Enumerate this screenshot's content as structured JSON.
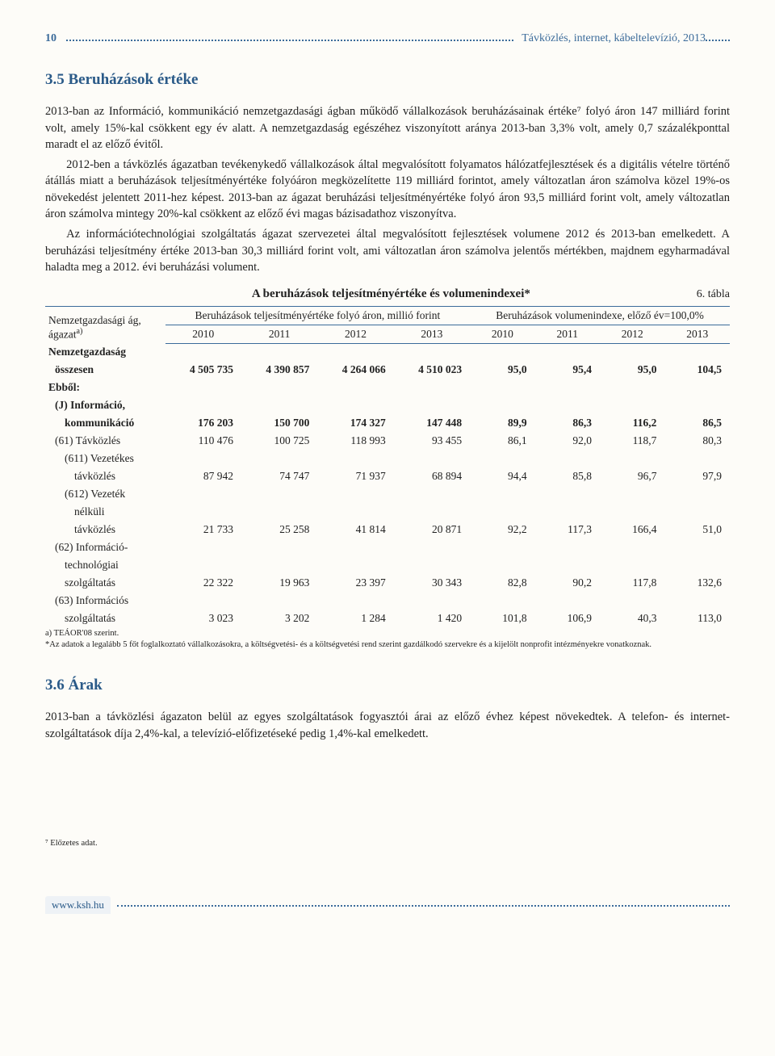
{
  "header": {
    "page_num": "10",
    "title": "Távközlés, internet, kábeltelevízió, 2013"
  },
  "section35": {
    "title": "3.5 Beruházások értéke",
    "p1": "2013-ban az Információ, kommunikáció nemzetgazdasági ágban működő vállalkozások beruházásainak értéke⁷ folyó áron 147 milliárd forint volt, amely 15%-kal csökkent egy év alatt. A nemzetgazdaság egészéhez viszonyított aránya 2013-ban 3,3% volt, amely 0,7 százalékponttal maradt el az előző évitől.",
    "p2": "2012-ben a távközlés ágazatban tevékenykedő vállalkozások által megvalósított folyamatos hálózatfejlesztések és a digitális vételre történő átállás miatt a beruházások teljesítményértéke folyóáron megközelítette 119 milliárd forintot, amely változatlan áron számolva közel 19%-os növekedést jelentett 2011-hez képest. 2013-ban az ágazat beruházási teljesítményértéke folyó áron 93,5 milliárd forint volt, amely változatlan áron számolva mintegy 20%-kal csökkent az előző évi magas bázisadathoz viszonyítva.",
    "p3": "Az információtechnológiai szolgáltatás ágazat szervezetei által megvalósított fejlesztések volumene 2012 és 2013-ban emelkedett. A beruházási teljesítmény értéke 2013-ban 30,3 milliárd forint volt, ami változatlan áron számolva jelentős mértékben, majdnem egyharmadával haladta meg a 2012. évi beruházási volument."
  },
  "table": {
    "number": "6. tábla",
    "title": "A beruházások teljesítményértéke és volumenindexei*",
    "rowhead_l1": "Nemzetgazdasági ág,",
    "rowhead_l2": "ágazat",
    "rowhead_sup": "a)",
    "group1": "Beruházások teljesítményértéke folyó áron, millió forint",
    "group2": "Beruházások volumenindexe, előző év=100,0%",
    "years": [
      "2010",
      "2011",
      "2012",
      "2013",
      "2010",
      "2011",
      "2012",
      "2013"
    ],
    "rows": [
      {
        "label": "Nemzetgazdaság",
        "bold": true,
        "ind": 0,
        "vals": [
          "",
          "",
          "",
          "",
          "",
          "",
          "",
          ""
        ]
      },
      {
        "label": "összesen",
        "bold": true,
        "ind": 1,
        "vals": [
          "4 505 735",
          "4 390 857",
          "4 264 066",
          "4 510 023",
          "95,0",
          "95,4",
          "95,0",
          "104,5"
        ]
      },
      {
        "label": "Ebből:",
        "bold": true,
        "ind": 0,
        "vals": [
          "",
          "",
          "",
          "",
          "",
          "",
          "",
          ""
        ]
      },
      {
        "label": "(J) Információ,",
        "bold": true,
        "ind": 1,
        "vals": [
          "",
          "",
          "",
          "",
          "",
          "",
          "",
          ""
        ]
      },
      {
        "label": "kommunikáció",
        "bold": true,
        "ind": 2,
        "vals": [
          "176 203",
          "150 700",
          "174 327",
          "147 448",
          "89,9",
          "86,3",
          "116,2",
          "86,5"
        ]
      },
      {
        "label": "(61) Távközlés",
        "bold": false,
        "ind": 1,
        "vals": [
          "110 476",
          "100 725",
          "118 993",
          "93 455",
          "86,1",
          "92,0",
          "118,7",
          "80,3"
        ]
      },
      {
        "label": "(611) Vezetékes",
        "bold": false,
        "ind": 2,
        "vals": [
          "",
          "",
          "",
          "",
          "",
          "",
          "",
          ""
        ]
      },
      {
        "label": "távközlés",
        "bold": false,
        "ind": 3,
        "vals": [
          "87 942",
          "74 747",
          "71 937",
          "68 894",
          "94,4",
          "85,8",
          "96,7",
          "97,9"
        ]
      },
      {
        "label": "(612) Vezeték",
        "bold": false,
        "ind": 2,
        "vals": [
          "",
          "",
          "",
          "",
          "",
          "",
          "",
          ""
        ]
      },
      {
        "label": "nélküli",
        "bold": false,
        "ind": 3,
        "vals": [
          "",
          "",
          "",
          "",
          "",
          "",
          "",
          ""
        ]
      },
      {
        "label": "távközlés",
        "bold": false,
        "ind": 3,
        "vals": [
          "21 733",
          "25 258",
          "41 814",
          "20 871",
          "92,2",
          "117,3",
          "166,4",
          "51,0"
        ]
      },
      {
        "label": "(62) Információ-",
        "bold": false,
        "ind": 1,
        "vals": [
          "",
          "",
          "",
          "",
          "",
          "",
          "",
          ""
        ]
      },
      {
        "label": "technológiai",
        "bold": false,
        "ind": 2,
        "vals": [
          "",
          "",
          "",
          "",
          "",
          "",
          "",
          ""
        ]
      },
      {
        "label": "szolgáltatás",
        "bold": false,
        "ind": 2,
        "vals": [
          "22 322",
          "19 963",
          "23 397",
          "30 343",
          "82,8",
          "90,2",
          "117,8",
          "132,6"
        ]
      },
      {
        "label": "(63) Információs",
        "bold": false,
        "ind": 1,
        "vals": [
          "",
          "",
          "",
          "",
          "",
          "",
          "",
          ""
        ]
      },
      {
        "label": "szolgáltatás",
        "bold": false,
        "ind": 2,
        "vals": [
          "3 023",
          "3 202",
          "1 284",
          "1 420",
          "101,8",
          "106,9",
          "40,3",
          "113,0"
        ]
      }
    ],
    "footnote_a": "a) TEÁOR'08 szerint.",
    "footnote_star": "*Az adatok a legalább 5 főt foglalkoztató vállalkozásokra, a költségvetési- és a költségvetési rend szerint gazdálkodó szervekre és a kijelölt nonprofit intézményekre vonatkoznak."
  },
  "section36": {
    "title": "3.6 Árak",
    "p1": "2013-ban a távközlési ágazaton belül az egyes szolgáltatások fogyasztói árai az előző évhez képest növekedtek. A telefon- és internet-szolgáltatások díja 2,4%-kal, a televízió-előfizetéseké pedig 1,4%-kal emelkedett."
  },
  "bottom_footnote": "⁷ Előzetes adat.",
  "footer": {
    "link": "www.ksh.hu"
  }
}
